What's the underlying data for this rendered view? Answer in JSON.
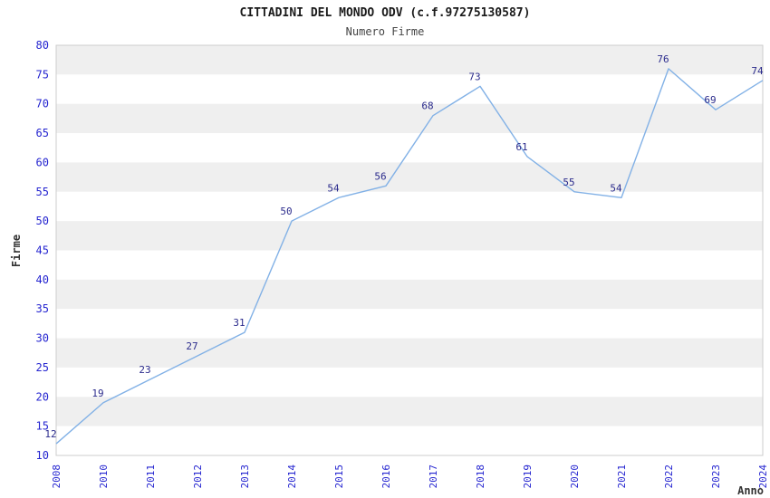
{
  "chart_data": {
    "type": "line",
    "title": "CITTADINI DEL MONDO ODV (c.f.97275130587)",
    "subtitle": "Numero Firme",
    "xlabel": "Anno",
    "ylabel": "Firme",
    "categories": [
      "2008",
      "2010",
      "2011",
      "2012",
      "2013",
      "2014",
      "2015",
      "2016",
      "2017",
      "2018",
      "2019",
      "2020",
      "2021",
      "2022",
      "2023",
      "2024"
    ],
    "values": [
      12,
      19,
      23,
      27,
      31,
      50,
      54,
      56,
      68,
      73,
      61,
      55,
      54,
      76,
      69,
      74
    ],
    "ylim": [
      10,
      80
    ],
    "ytick_step": 5,
    "yticks": [
      10,
      15,
      20,
      25,
      30,
      35,
      40,
      45,
      50,
      55,
      60,
      65,
      70,
      75,
      80
    ],
    "grid": "alternating horizontal bands every 5 units, gray bands between multiples of 10",
    "legend_position": "none",
    "point_labels_shown": true,
    "colors": {
      "line": "#82b1e6",
      "point_label": "#2b2b8c",
      "tick_label": "#2525d0",
      "title": "#1a1a1a",
      "subtitle": "#444444",
      "axis_title": "#333333",
      "band_gray": "#efefef",
      "band_white": "#ffffff",
      "plot_border": "#cccccc",
      "background": "#ffffff"
    }
  }
}
